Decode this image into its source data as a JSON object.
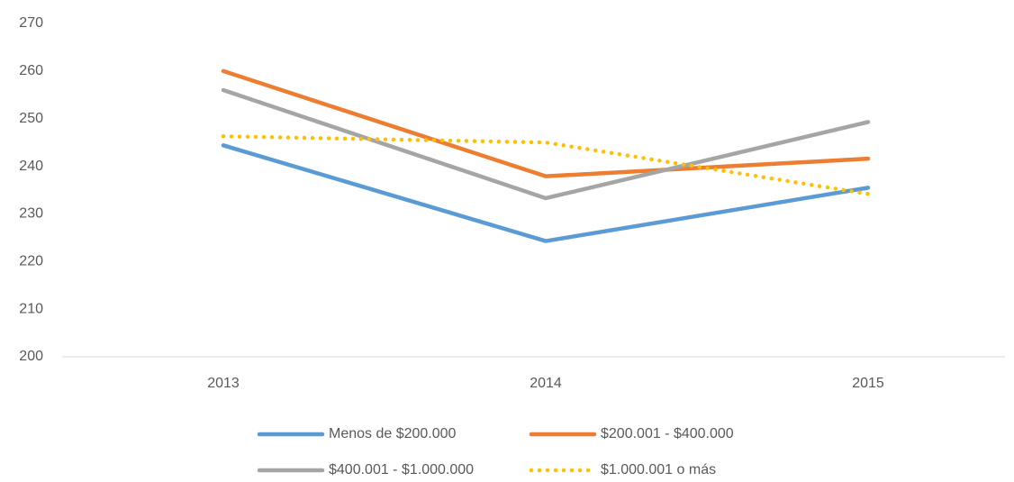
{
  "chart_data": {
    "type": "line",
    "categories": [
      "2013",
      "2014",
      "2015"
    ],
    "series": [
      {
        "name": "Menos de $200.000",
        "color": "#5b9bd5",
        "values": [
          244.4,
          224.3,
          235.5
        ]
      },
      {
        "name": "$200.001 - $400.000",
        "color": "#ed7d31",
        "values": [
          260,
          237.9,
          241.6
        ]
      },
      {
        "name": "$400.001 - $1.000.000",
        "color": "#a5a5a5",
        "values": [
          256,
          233.3,
          249.3
        ]
      },
      {
        "name": "$1.000.001 o más",
        "color": "#ffc000",
        "style": "dotted",
        "values": [
          246.3,
          245,
          234.2
        ]
      }
    ],
    "ylim": [
      200,
      270
    ],
    "yticks": [
      200,
      210,
      220,
      230,
      240,
      250,
      260,
      270
    ],
    "grid": false,
    "legend": "bottom"
  }
}
